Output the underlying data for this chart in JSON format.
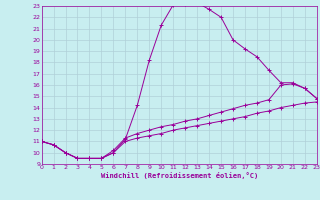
{
  "xlabel": "Windchill (Refroidissement éolien,°C)",
  "background_color": "#c8eef0",
  "grid_color": "#b0d0d8",
  "line_color": "#990099",
  "xlim": [
    0,
    23
  ],
  "ylim": [
    9,
    23
  ],
  "xticks": [
    0,
    1,
    2,
    3,
    4,
    5,
    6,
    7,
    8,
    9,
    10,
    11,
    12,
    13,
    14,
    15,
    16,
    17,
    18,
    19,
    20,
    21,
    22,
    23
  ],
  "yticks": [
    9,
    10,
    11,
    12,
    13,
    14,
    15,
    16,
    17,
    18,
    19,
    20,
    21,
    22,
    23
  ],
  "series": [
    {
      "x": [
        0,
        1,
        2,
        3,
        4,
        5,
        6,
        7,
        8,
        9,
        10,
        11,
        12,
        13,
        14,
        15,
        16,
        17,
        18,
        19,
        20,
        21,
        22,
        23
      ],
      "y": [
        11.0,
        10.7,
        10.0,
        9.5,
        9.5,
        9.5,
        10.0,
        11.2,
        14.2,
        18.2,
        21.3,
        23.1,
        23.2,
        23.3,
        22.7,
        22.0,
        20.0,
        19.2,
        18.5,
        17.3,
        16.2,
        16.2,
        15.7,
        14.8
      ]
    },
    {
      "x": [
        0,
        1,
        2,
        3,
        4,
        5,
        6,
        7,
        8,
        9,
        10,
        11,
        12,
        13,
        14,
        15,
        16,
        17,
        18,
        19,
        20,
        21,
        22,
        23
      ],
      "y": [
        11.0,
        10.7,
        10.0,
        9.5,
        9.5,
        9.5,
        10.2,
        11.3,
        11.7,
        12.0,
        12.3,
        12.5,
        12.8,
        13.0,
        13.3,
        13.6,
        13.9,
        14.2,
        14.4,
        14.7,
        16.0,
        16.1,
        15.7,
        14.8
      ]
    },
    {
      "x": [
        0,
        1,
        2,
        3,
        4,
        5,
        6,
        7,
        8,
        9,
        10,
        11,
        12,
        13,
        14,
        15,
        16,
        17,
        18,
        19,
        20,
        21,
        22,
        23
      ],
      "y": [
        11.0,
        10.7,
        10.0,
        9.5,
        9.5,
        9.5,
        10.0,
        11.0,
        11.3,
        11.5,
        11.7,
        12.0,
        12.2,
        12.4,
        12.6,
        12.8,
        13.0,
        13.2,
        13.5,
        13.7,
        14.0,
        14.2,
        14.4,
        14.5
      ]
    }
  ]
}
